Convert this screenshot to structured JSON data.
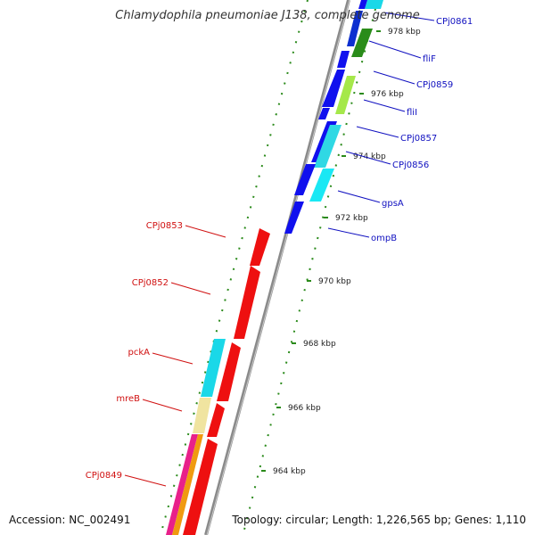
{
  "title": "Chlamydophila pneumoniae J138, complete genome",
  "footer": {
    "accession": "Accession: NC_002491",
    "summary": "Topology: circular; Length: 1,226,565 bp; Genes: 1,110"
  },
  "colors": {
    "backbone": "#8a8a8a",
    "tick": "#2a8a1a",
    "label_forward": "#1010c0",
    "label_reverse": "#d01010"
  },
  "ticks": [
    {
      "label": "978 kbp"
    },
    {
      "label": "976 kbp"
    },
    {
      "label": "974 kbp"
    },
    {
      "label": "972 kbp"
    },
    {
      "label": "970 kbp"
    },
    {
      "label": "968 kbp"
    },
    {
      "label": "966 kbp"
    },
    {
      "label": "964 kbp"
    }
  ],
  "forward_labels": [
    {
      "name": "CPj0861"
    },
    {
      "name": "fliF"
    },
    {
      "name": "CPj0859"
    },
    {
      "name": "fliI"
    },
    {
      "name": "CPj0857"
    },
    {
      "name": "CPj0856"
    },
    {
      "name": "gpsA"
    },
    {
      "name": "ompB"
    }
  ],
  "reverse_labels": [
    {
      "name": "CPj0853"
    },
    {
      "name": "CPj0852"
    },
    {
      "name": "pckA"
    },
    {
      "name": "mreB"
    },
    {
      "name": "CPj0849"
    }
  ]
}
